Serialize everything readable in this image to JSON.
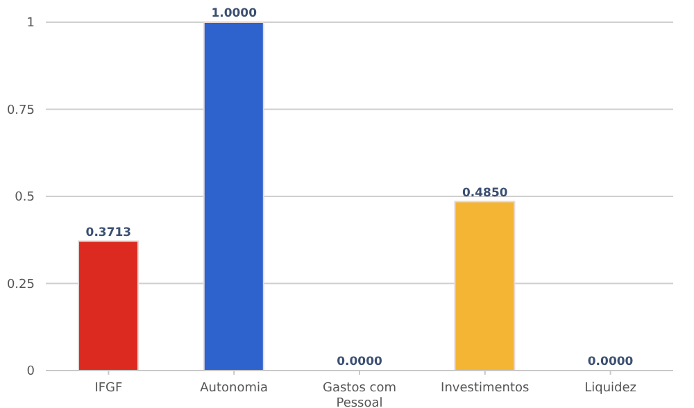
{
  "chart_data": {
    "type": "bar",
    "categories": [
      "IFGF",
      "Autonomia",
      "Gastos com Pessoal",
      "Investimentos",
      "Liquidez"
    ],
    "values": [
      0.3713,
      1.0,
      0.0,
      0.485,
      0.0
    ],
    "value_labels": [
      "0.3713",
      "1.0000",
      "0.0000",
      "0.4850",
      "0.0000"
    ],
    "colors": [
      "#dd2a20",
      "#2e62cc",
      "#8c8c8c",
      "#f4b534",
      "#3a9a4c"
    ],
    "ylim": [
      0,
      1
    ],
    "yticks": [
      0,
      0.25,
      0.5,
      0.75,
      1
    ],
    "grid": "y"
  }
}
